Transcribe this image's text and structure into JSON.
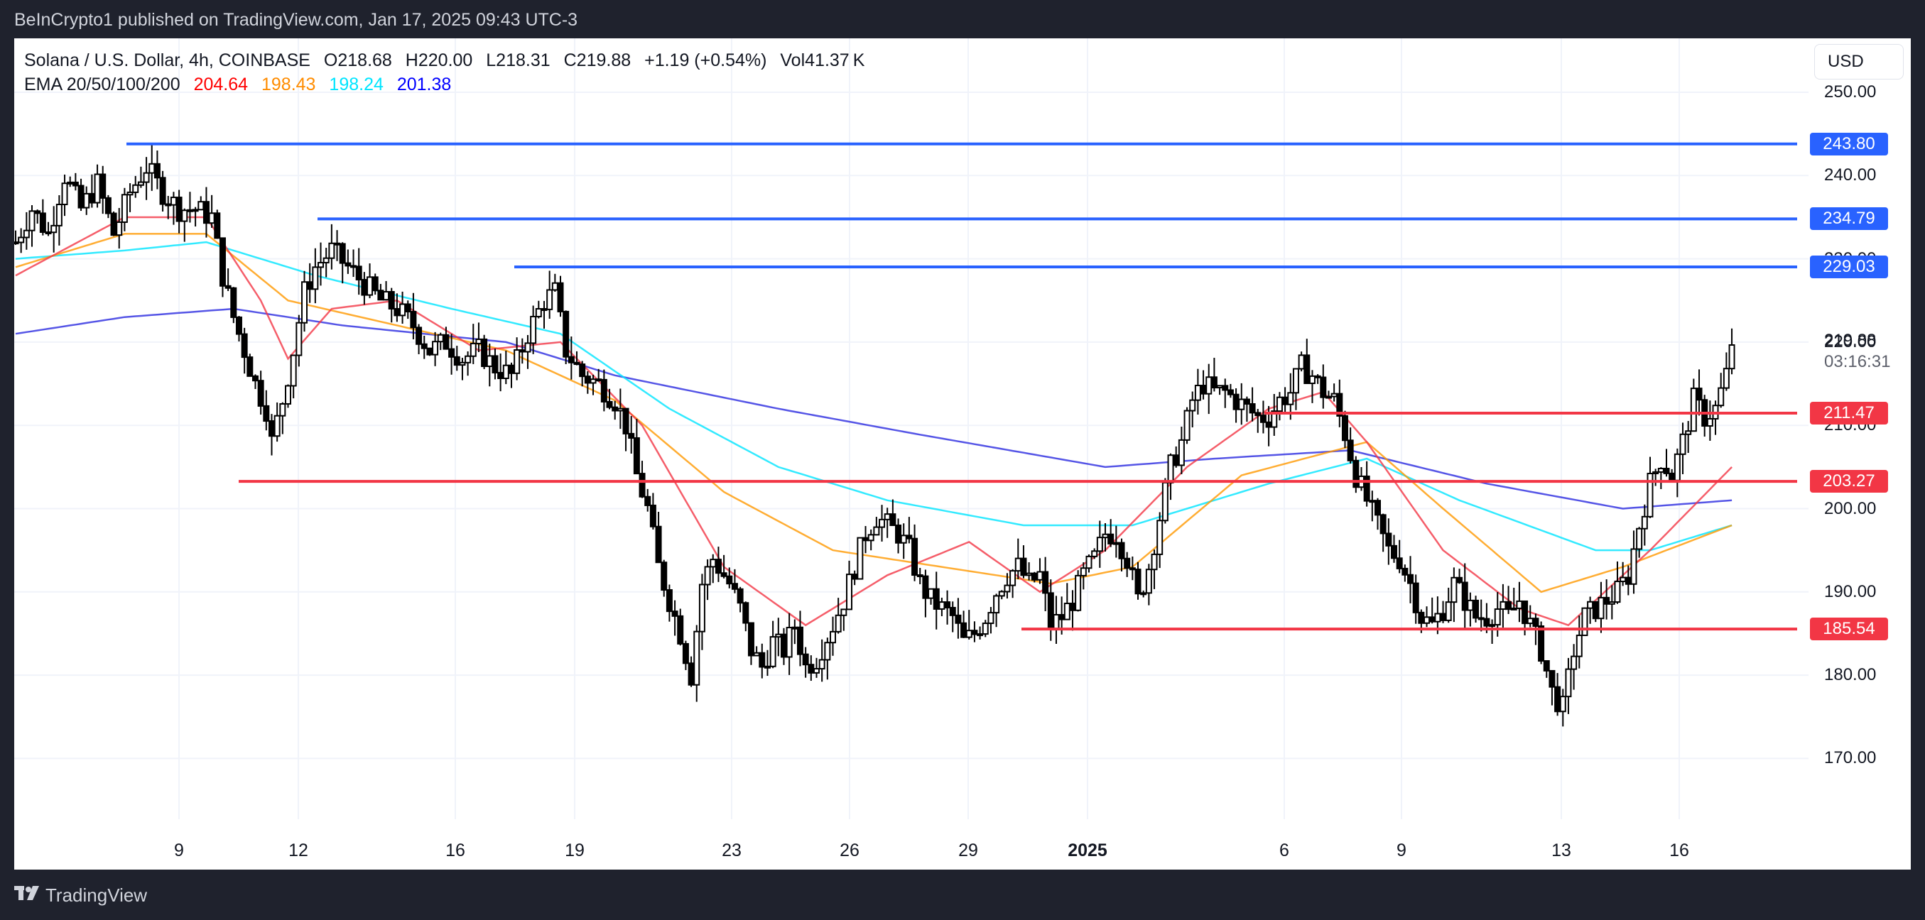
{
  "header": {
    "published": "BeInCrypto1 published on TradingView.com, Jan 17, 2025 09:43 UTC-3"
  },
  "legend": {
    "symbol": "Solana / U.S. Dollar, 4h, COINBASE",
    "open": "O218.68",
    "high": "H220.00",
    "low": "L218.31",
    "close": "C219.88",
    "change": "+1.19 (+0.54%)",
    "volume": "Vol41.37 K",
    "ema_label": "EMA 20/50/100/200",
    "ema20": "204.64",
    "ema50": "198.43",
    "ema100": "198.24",
    "ema200": "201.38"
  },
  "colors": {
    "ema20": "#f23645",
    "ema50": "#ff9800",
    "ema100": "#00e5ff",
    "ema200": "#2a2ae0",
    "legend_ema20": "#ff0000",
    "legend_ema50": "#ff8c00",
    "legend_ema100": "#00ffff",
    "legend_ema200": "#0000ff",
    "resistance": "#2962ff",
    "support": "#f23645"
  },
  "currency_button": "USD",
  "current_price": {
    "value": "219.88",
    "countdown": "03:16:31"
  },
  "footer": {
    "brand": "TradingView",
    "logo_mark": "TV"
  },
  "chart_data": {
    "type": "candlestick",
    "title": "Solana / U.S. Dollar, 4h, COINBASE",
    "xlabel": "",
    "ylabel": "USD",
    "ylim": [
      163,
      253
    ],
    "price_ticks": [
      "250.00",
      "240.00",
      "230.00",
      "220.00",
      "210.00",
      "200.00",
      "190.00",
      "180.00",
      "170.00"
    ],
    "time_ticks": [
      {
        "label": "9",
        "x": 252
      },
      {
        "label": "12",
        "x": 420
      },
      {
        "label": "16",
        "x": 641
      },
      {
        "label": "19",
        "x": 809
      },
      {
        "label": "23",
        "x": 1030
      },
      {
        "label": "26",
        "x": 1196
      },
      {
        "label": "29",
        "x": 1363
      },
      {
        "label": "2025",
        "x": 1531,
        "bold": true
      },
      {
        "label": "6",
        "x": 1808
      },
      {
        "label": "9",
        "x": 1973
      },
      {
        "label": "13",
        "x": 2198
      },
      {
        "label": "16",
        "x": 2364
      }
    ],
    "levels": [
      {
        "value": 243.8,
        "label": "243.80",
        "type": "resistance",
        "start_x": 178
      },
      {
        "value": 234.79,
        "label": "234.79",
        "type": "resistance",
        "start_x": 447
      },
      {
        "value": 229.03,
        "label": "229.03",
        "type": "resistance",
        "start_x": 724
      },
      {
        "value": 211.47,
        "label": "211.47",
        "type": "support",
        "start_x": 1780
      },
      {
        "value": 203.27,
        "label": "203.27",
        "type": "support",
        "start_x": 336
      },
      {
        "value": 185.54,
        "label": "185.54",
        "type": "support",
        "start_x": 1438
      }
    ],
    "candle_close_anchors": [
      [
        0,
        232
      ],
      [
        3,
        236
      ],
      [
        6,
        233
      ],
      [
        9,
        240
      ],
      [
        12,
        236
      ],
      [
        15,
        239
      ],
      [
        18,
        233
      ],
      [
        21,
        238
      ],
      [
        24,
        241
      ],
      [
        27,
        238
      ],
      [
        30,
        236
      ],
      [
        33,
        236
      ],
      [
        36,
        235
      ],
      [
        38,
        228
      ],
      [
        40,
        223
      ],
      [
        42,
        219
      ],
      [
        44,
        215
      ],
      [
        46,
        212
      ],
      [
        47,
        208
      ],
      [
        49,
        213
      ],
      [
        51,
        219
      ],
      [
        53,
        226
      ],
      [
        55,
        229
      ],
      [
        58,
        231
      ],
      [
        61,
        229
      ],
      [
        64,
        227
      ],
      [
        67,
        225
      ],
      [
        70,
        224
      ],
      [
        73,
        222
      ],
      [
        76,
        219
      ],
      [
        79,
        220
      ],
      [
        82,
        218
      ],
      [
        85,
        219
      ],
      [
        88,
        217
      ],
      [
        91,
        216
      ],
      [
        94,
        221
      ],
      [
        97,
        225
      ],
      [
        99,
        226
      ],
      [
        101,
        219
      ],
      [
        104,
        216
      ],
      [
        107,
        215
      ],
      [
        110,
        213
      ],
      [
        112,
        210
      ],
      [
        114,
        204
      ],
      [
        116,
        200
      ],
      [
        118,
        193
      ],
      [
        120,
        189
      ],
      [
        122,
        185
      ],
      [
        124,
        180
      ],
      [
        126,
        191
      ],
      [
        128,
        194
      ],
      [
        131,
        191
      ],
      [
        133,
        188
      ],
      [
        135,
        183
      ],
      [
        137,
        181
      ],
      [
        139,
        184
      ],
      [
        141,
        183
      ],
      [
        143,
        186
      ],
      [
        145,
        181
      ],
      [
        147,
        182
      ],
      [
        150,
        186
      ],
      [
        152,
        189
      ],
      [
        154,
        193
      ],
      [
        156,
        197
      ],
      [
        158,
        199
      ],
      [
        160,
        198
      ],
      [
        162,
        197
      ],
      [
        164,
        195
      ],
      [
        166,
        191
      ],
      [
        168,
        189
      ],
      [
        170,
        188
      ],
      [
        172,
        187
      ],
      [
        174,
        184
      ],
      [
        176,
        185
      ],
      [
        178,
        187
      ],
      [
        180,
        190
      ],
      [
        182,
        192
      ],
      [
        184,
        193
      ],
      [
        186,
        191
      ],
      [
        188,
        192
      ],
      [
        190,
        186
      ],
      [
        192,
        187
      ],
      [
        194,
        189
      ],
      [
        196,
        192
      ],
      [
        198,
        194
      ],
      [
        200,
        197
      ],
      [
        202,
        197
      ],
      [
        204,
        194
      ],
      [
        206,
        189
      ],
      [
        208,
        193
      ],
      [
        210,
        199
      ],
      [
        212,
        205
      ],
      [
        214,
        208
      ],
      [
        216,
        213
      ],
      [
        218,
        215
      ],
      [
        220,
        214
      ],
      [
        222,
        214
      ],
      [
        224,
        213
      ],
      [
        226,
        212
      ],
      [
        228,
        211
      ],
      [
        230,
        211
      ],
      [
        232,
        213
      ],
      [
        234,
        214
      ],
      [
        236,
        217
      ],
      [
        238,
        216
      ],
      [
        240,
        214
      ],
      [
        242,
        213
      ],
      [
        244,
        209
      ],
      [
        246,
        204
      ],
      [
        248,
        201
      ],
      [
        250,
        198
      ],
      [
        252,
        195
      ],
      [
        254,
        194
      ],
      [
        256,
        191
      ],
      [
        258,
        187
      ],
      [
        260,
        186
      ],
      [
        262,
        188
      ],
      [
        264,
        191
      ],
      [
        266,
        189
      ],
      [
        268,
        187
      ],
      [
        270,
        187
      ],
      [
        272,
        188
      ],
      [
        274,
        187
      ],
      [
        276,
        189
      ],
      [
        278,
        186
      ],
      [
        280,
        183
      ],
      [
        282,
        178
      ],
      [
        284,
        176
      ],
      [
        286,
        183
      ],
      [
        288,
        187
      ],
      [
        290,
        188
      ],
      [
        292,
        189
      ],
      [
        294,
        190
      ],
      [
        296,
        192
      ],
      [
        298,
        198
      ],
      [
        300,
        203
      ],
      [
        302,
        206
      ],
      [
        304,
        204
      ],
      [
        306,
        208
      ],
      [
        308,
        213
      ],
      [
        310,
        211
      ],
      [
        312,
        212
      ],
      [
        314,
        216
      ],
      [
        315,
        220
      ]
    ],
    "ema_paths": {
      "ema20": [
        [
          0,
          228
        ],
        [
          20,
          235
        ],
        [
          35,
          235
        ],
        [
          45,
          225
        ],
        [
          50,
          218
        ],
        [
          58,
          224
        ],
        [
          70,
          225
        ],
        [
          85,
          219
        ],
        [
          100,
          220
        ],
        [
          115,
          210
        ],
        [
          130,
          193
        ],
        [
          145,
          186
        ],
        [
          160,
          192
        ],
        [
          175,
          196
        ],
        [
          188,
          190
        ],
        [
          200,
          195
        ],
        [
          215,
          205
        ],
        [
          230,
          212
        ],
        [
          240,
          214
        ],
        [
          248,
          208
        ],
        [
          262,
          195
        ],
        [
          276,
          188
        ],
        [
          285,
          186
        ],
        [
          300,
          195
        ],
        [
          315,
          205
        ]
      ],
      "ema50": [
        [
          0,
          229
        ],
        [
          20,
          233
        ],
        [
          35,
          233
        ],
        [
          50,
          225
        ],
        [
          70,
          222
        ],
        [
          90,
          219
        ],
        [
          110,
          213
        ],
        [
          130,
          202
        ],
        [
          150,
          195
        ],
        [
          170,
          193
        ],
        [
          190,
          191
        ],
        [
          205,
          193
        ],
        [
          225,
          204
        ],
        [
          248,
          208
        ],
        [
          262,
          200
        ],
        [
          280,
          190
        ],
        [
          295,
          193
        ],
        [
          315,
          198
        ]
      ],
      "ema100": [
        [
          0,
          230
        ],
        [
          20,
          231
        ],
        [
          35,
          232
        ],
        [
          55,
          228
        ],
        [
          80,
          224
        ],
        [
          100,
          221
        ],
        [
          120,
          212
        ],
        [
          140,
          205
        ],
        [
          160,
          201
        ],
        [
          185,
          198
        ],
        [
          205,
          198
        ],
        [
          230,
          203
        ],
        [
          248,
          206
        ],
        [
          265,
          201
        ],
        [
          290,
          195
        ],
        [
          300,
          195
        ],
        [
          315,
          198
        ]
      ],
      "ema200": [
        [
          0,
          221
        ],
        [
          20,
          223
        ],
        [
          40,
          224
        ],
        [
          60,
          222
        ],
        [
          90,
          220
        ],
        [
          110,
          216
        ],
        [
          140,
          212
        ],
        [
          165,
          209
        ],
        [
          200,
          205
        ],
        [
          220,
          206
        ],
        [
          245,
          207
        ],
        [
          270,
          203
        ],
        [
          295,
          200
        ],
        [
          315,
          201
        ]
      ]
    }
  }
}
